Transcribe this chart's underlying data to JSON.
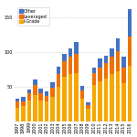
{
  "years": [
    1997,
    1998,
    1999,
    2000,
    2001,
    2002,
    2003,
    2004,
    2005,
    2006,
    2007,
    2008,
    2009,
    2010,
    2011,
    2012,
    2013,
    2014,
    2015,
    2016
  ],
  "i_grade": [
    20,
    22,
    30,
    38,
    30,
    28,
    35,
    50,
    65,
    68,
    70,
    32,
    18,
    52,
    58,
    62,
    68,
    72,
    55,
    80
  ],
  "leveraged": [
    8,
    7,
    10,
    14,
    10,
    9,
    13,
    18,
    22,
    25,
    27,
    12,
    6,
    17,
    20,
    22,
    26,
    30,
    22,
    42
  ],
  "other": [
    5,
    6,
    6,
    9,
    7,
    6,
    8,
    11,
    10,
    13,
    18,
    7,
    3,
    8,
    13,
    11,
    12,
    18,
    16,
    40
  ],
  "color_igrade": "#F5A800",
  "color_leveraged": "#F07000",
  "color_other": "#4472C4",
  "legend_labels": [
    "Other",
    "Leveraged",
    "I-Grade"
  ],
  "tick_fontsize": 3.5,
  "bar_width": 0.7,
  "grid_color": "#d0d0d0",
  "ytick_values": [
    0,
    50,
    100,
    150
  ],
  "ytick_labels": [
    "",
    "50",
    "100",
    "150"
  ],
  "ylim": [
    0,
    170
  ],
  "background": "#ffffff"
}
